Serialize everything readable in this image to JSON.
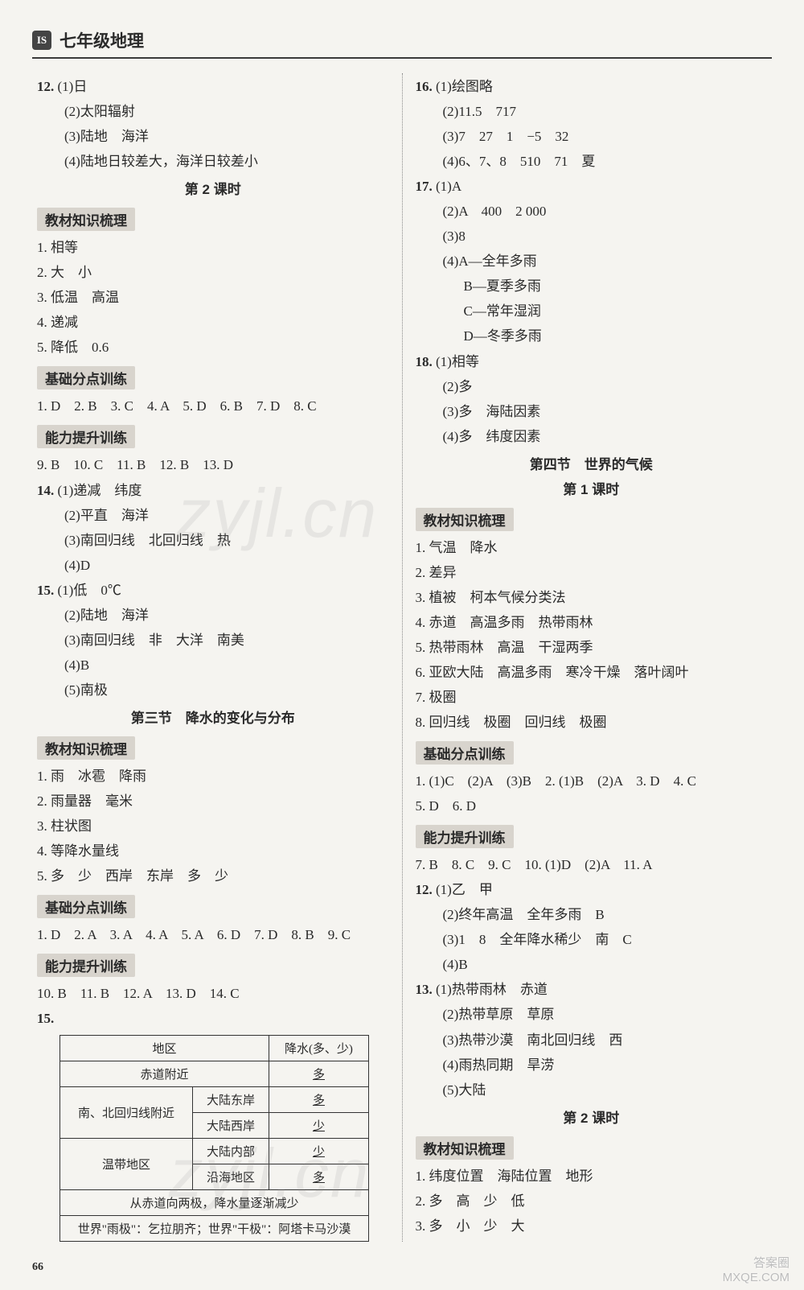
{
  "header": {
    "logo_text": "IS",
    "title": "七年级地理"
  },
  "left": {
    "q12": {
      "num": "12.",
      "a1": "(1)日",
      "a2": "(2)太阳辐射",
      "a3": "(3)陆地　海洋",
      "a4": "(4)陆地日较差大，海洋日较差小"
    },
    "lesson2": "第 2 课时",
    "label_jiaocai1": "教材知识梳理",
    "jc1": {
      "l1": "1. 相等",
      "l2": "2. 大　小",
      "l3": "3. 低温　高温",
      "l4": "4. 递减",
      "l5": "5. 降低　0.6"
    },
    "label_jichu1": "基础分点训练",
    "jichu1": "1. D　2. B　3. C　4. A　5. D　6. B　7. D　8. C",
    "label_nengli1": "能力提升训练",
    "nl1_row": "9. B　10. C　11. B　12. B　13. D",
    "q14": {
      "num": "14.",
      "a1": "(1)递减　纬度",
      "a2": "(2)平直　海洋",
      "a3": "(3)南回归线　北回归线　热",
      "a4": "(4)D"
    },
    "q15": {
      "num": "15.",
      "a1": "(1)低　0℃",
      "a2": "(2)陆地　海洋",
      "a3": "(3)南回归线　非　大洋　南美",
      "a4": "(4)B",
      "a5": "(5)南极"
    },
    "section3": "第三节　降水的变化与分布",
    "label_jiaocai2": "教材知识梳理",
    "jc2": {
      "l1": "1. 雨　冰雹　降雨",
      "l2": "2. 雨量器　毫米",
      "l3": "3. 柱状图",
      "l4": "4. 等降水量线",
      "l5": "5. 多　少　西岸　东岸　多　少"
    },
    "label_jichu2": "基础分点训练",
    "jichu2": "1. D　2. A　3. A　4. A　5. A　6. D　7. D　8. B　9. C",
    "label_nengli2": "能力提升训练",
    "nl2_row": "10. B　11. B　12. A　13. D　14. C",
    "q15b": "15.",
    "table": {
      "h1": "地区",
      "h2": "降水(多、少)",
      "r1c1": "赤道附近",
      "r1c2": "多",
      "r2c1": "南、北回归线附近",
      "r2c2a": "大陆东岸",
      "r2c2b": "多",
      "r2d2a": "大陆西岸",
      "r2d2b": "少",
      "r3c1": "温带地区",
      "r3c2a": "大陆内部",
      "r3c2b": "少",
      "r3d2a": "沿海地区",
      "r3d2b": "多",
      "r4": "从赤道向两极，降水量逐渐减少",
      "r5": "世界\"雨极\"：乞拉朋齐；世界\"干极\"：阿塔卡马沙漠"
    }
  },
  "right": {
    "q16": {
      "num": "16.",
      "a1": "(1)绘图略",
      "a2": "(2)11.5　717",
      "a3": "(3)7　27　1　−5　32",
      "a4": "(4)6、7、8　510　71　夏"
    },
    "q17": {
      "num": "17.",
      "a1": "(1)A",
      "a2": "(2)A　400　2 000",
      "a3": "(3)8",
      "a4": "(4)A—全年多雨",
      "a4b": "B—夏季多雨",
      "a4c": "C—常年湿润",
      "a4d": "D—冬季多雨"
    },
    "q18": {
      "num": "18.",
      "a1": "(1)相等",
      "a2": "(2)多",
      "a3": "(3)多　海陆因素",
      "a4": "(4)多　纬度因素"
    },
    "section4": "第四节　世界的气候",
    "lesson1": "第 1 课时",
    "label_jiaocai3": "教材知识梳理",
    "jc3": {
      "l1": "1. 气温　降水",
      "l2": "2. 差异",
      "l3": "3. 植被　柯本气候分类法",
      "l4": "4. 赤道　高温多雨　热带雨林",
      "l5": "5. 热带雨林　高温　干湿两季",
      "l6": "6. 亚欧大陆　高温多雨　寒冷干燥　落叶阔叶",
      "l7": "7. 极圈",
      "l8": "8. 回归线　极圈　回归线　极圈"
    },
    "label_jichu3": "基础分点训练",
    "jichu3a": "1. (1)C　(2)A　(3)B　2. (1)B　(2)A　3. D　4. C",
    "jichu3b": "5. D　6. D",
    "label_nengli3": "能力提升训练",
    "nl3_row": "7. B　8. C　9. C　10. (1)D　(2)A　11. A",
    "q12r": {
      "num": "12.",
      "a1": "(1)乙　甲",
      "a2": "(2)终年高温　全年多雨　B",
      "a3": "(3)1　8　全年降水稀少　南　C",
      "a4": "(4)B"
    },
    "q13r": {
      "num": "13.",
      "a1": "(1)热带雨林　赤道",
      "a2": "(2)热带草原　草原",
      "a3": "(3)热带沙漠　南北回归线　西",
      "a4": "(4)雨热同期　旱涝",
      "a5": "(5)大陆"
    },
    "lesson2r": "第 2 课时",
    "label_jiaocai4": "教材知识梳理",
    "jc4": {
      "l1": "1. 纬度位置　海陆位置　地形",
      "l2": "2. 多　高　少　低",
      "l3": "3. 多　小　少　大"
    }
  },
  "pagenum": "66",
  "watermark": "zyjl.cn",
  "footer": {
    "l1": "答案圈",
    "l2": "MXQE.COM"
  }
}
